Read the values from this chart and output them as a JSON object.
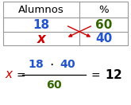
{
  "table_headers": [
    "Alumnos",
    "%"
  ],
  "row1": [
    "18",
    "60"
  ],
  "row2": [
    "x",
    "40"
  ],
  "color_18": "#2255cc",
  "color_60": "#336600",
  "color_x_table": "#cc0000",
  "color_40": "#2255cc",
  "color_x_formula": "#cc0000",
  "color_18_formula": "#2255cc",
  "color_40_formula": "#2255cc",
  "color_60_formula": "#336600",
  "color_12": "#000000",
  "color_arrows": "#cc0000",
  "border_color": "#999999",
  "header_fontsize": 9.5,
  "cell_fontsize": 11,
  "formula_fontsize": 10
}
